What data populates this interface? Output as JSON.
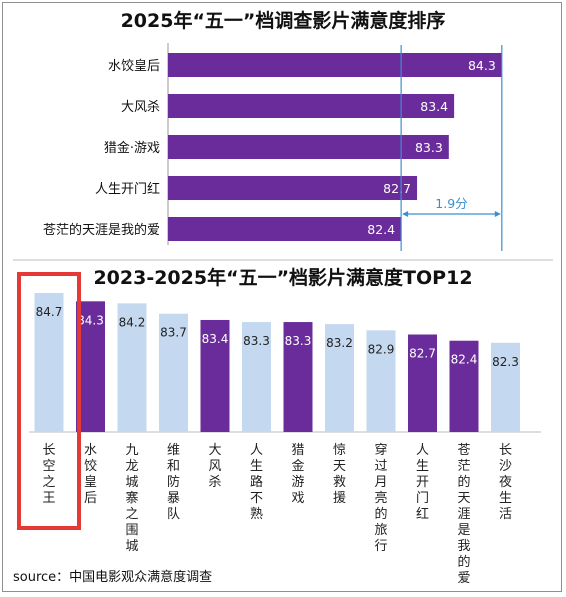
{
  "colors": {
    "purple": "#6a2c9b",
    "light_blue": "#c4d8ef",
    "highlight_box": "#e53935",
    "bracket_blue": "#3a8fd0"
  },
  "source": "source：中国电影观众满意度调查",
  "chart_data": [
    {
      "type": "bar",
      "orientation": "horizontal",
      "title": "2025年“五一”档调查影片满意度排序",
      "categories": [
        "水饺皇后",
        "大风杀",
        "猎金·游戏",
        "人生开门红",
        "苍茫的天涯是我的爱"
      ],
      "values": [
        84.3,
        83.4,
        83.3,
        82.7,
        82.4
      ],
      "value_labels": [
        "84.3",
        "83.4",
        "83.3",
        "82.7",
        "82.4"
      ],
      "annotation": "1.9分",
      "xlim": [
        78.0,
        84.7
      ],
      "grid": false
    },
    {
      "type": "bar",
      "orientation": "vertical",
      "title": "2023-2025年“五一”档影片满意度TOP12",
      "categories": [
        "长空之王",
        "水饺皇后",
        "九龙城寨之围城",
        "维和防暴队",
        "大风杀",
        "人生路不熟",
        "猎金游戏",
        "惊天救援",
        "穿过月亮的旅行",
        "人生开门红",
        "苍茫的天涯是我的爱",
        "长沙夜生活"
      ],
      "values": [
        84.7,
        84.3,
        84.2,
        83.7,
        83.4,
        83.3,
        83.3,
        83.2,
        82.9,
        82.7,
        82.4,
        82.3
      ],
      "value_labels": [
        "84.7",
        "84.3",
        "84.2",
        "83.7",
        "83.4",
        "83.3",
        "83.3",
        "83.2",
        "82.9",
        "82.7",
        "82.4",
        "82.3"
      ],
      "is_2025": [
        false,
        true,
        false,
        false,
        true,
        false,
        true,
        false,
        false,
        true,
        true,
        false
      ],
      "highlighted": "长空之王",
      "ylim": [
        78.0,
        84.7
      ],
      "grid": false
    }
  ]
}
